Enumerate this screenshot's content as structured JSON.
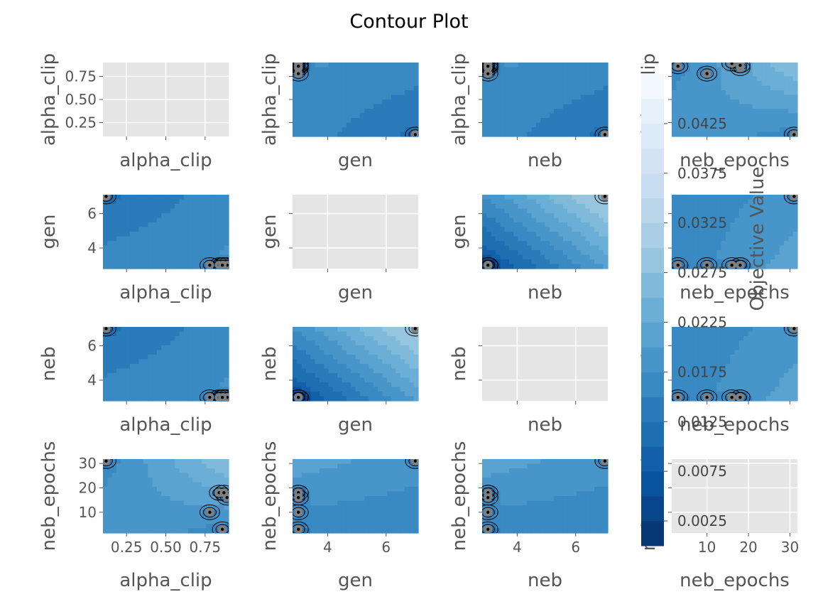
{
  "chart_data": {
    "type": "contour",
    "title": "Contour Plot",
    "params": [
      "alpha_clip",
      "gen",
      "neb",
      "neb_epochs"
    ],
    "ticks": {
      "alpha_clip": [
        "0.25",
        "0.50",
        "0.75"
      ],
      "gen": [
        "4",
        "6"
      ],
      "neb": [
        "4",
        "6"
      ],
      "neb_epochs": [
        "10",
        "20",
        "30"
      ]
    },
    "tick_values": {
      "alpha_clip": [
        0.25,
        0.5,
        0.75
      ],
      "gen": [
        4,
        6
      ],
      "neb": [
        4,
        6
      ],
      "neb_epochs": [
        10,
        20,
        30
      ]
    },
    "ranges": {
      "alpha_clip": [
        0.1,
        0.9
      ],
      "gen": [
        2.8,
        7.1
      ],
      "neb": [
        2.8,
        7.1
      ],
      "neb_epochs": [
        1.5,
        31.8
      ]
    },
    "trials": [
      {
        "alpha_clip": 0.12,
        "gen": 7,
        "neb": 7,
        "neb_epochs": 31
      },
      {
        "alpha_clip": 0.78,
        "gen": 3,
        "neb": 3,
        "neb_epochs": 10
      },
      {
        "alpha_clip": 0.84,
        "gen": 3,
        "neb": 3,
        "neb_epochs": 18
      },
      {
        "alpha_clip": 0.87,
        "gen": 3,
        "neb": 3,
        "neb_epochs": 18
      },
      {
        "alpha_clip": 0.89,
        "gen": 3,
        "neb": 3,
        "neb_epochs": 16
      },
      {
        "alpha_clip": 0.86,
        "gen": 3,
        "neb": 3,
        "neb_epochs": 3
      }
    ],
    "colorbar": {
      "label": "Objective Value",
      "ticks": [
        "0.0025",
        "0.0075",
        "0.0125",
        "0.0175",
        "0.0225",
        "0.0275",
        "0.0325",
        "0.0375",
        "0.0425"
      ],
      "tick_values": [
        0.0025,
        0.0075,
        0.0125,
        0.0175,
        0.0225,
        0.0275,
        0.0325,
        0.0375,
        0.0425
      ],
      "range": [
        0.0,
        0.0475
      ],
      "colormap": "Blues_r"
    },
    "grid": true,
    "empty_panel_color": "#e5e5e5"
  }
}
